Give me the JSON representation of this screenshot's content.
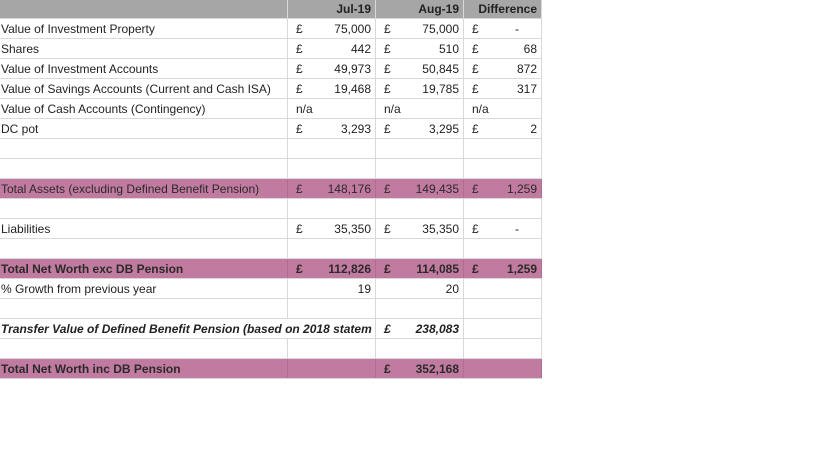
{
  "headers": {
    "jul": "Jul-19",
    "aug": "Aug-19",
    "diff": "Difference"
  },
  "currency": "£",
  "rows": {
    "investment_property": {
      "label": "Value of Investment Property",
      "jul": "75,000",
      "aug": "75,000",
      "diff": "-"
    },
    "shares": {
      "label": "Shares",
      "jul": "442",
      "aug": "510",
      "diff": "68"
    },
    "investment_accounts": {
      "label": "Value of Investment Accounts",
      "jul": "49,973",
      "aug": "50,845",
      "diff": "872"
    },
    "savings_accounts": {
      "label": "Value of Savings Accounts (Current and Cash ISA)",
      "jul": "19,468",
      "aug": "19,785",
      "diff": "317"
    },
    "cash_accounts": {
      "label": "Value of Cash Accounts (Contingency)",
      "jul": "n/a",
      "aug": "n/a",
      "diff": "n/a"
    },
    "dc_pot": {
      "label": "DC pot",
      "jul": "3,293",
      "aug": "3,295",
      "diff": "2"
    },
    "total_assets": {
      "label": "Total Assets (excluding Defined Benefit Pension)",
      "jul": "148,176",
      "aug": "149,435",
      "diff": "1,259"
    },
    "liabilities": {
      "label": "Liabilities",
      "jul": "35,350",
      "aug": "35,350",
      "diff": "-"
    },
    "net_worth_exc": {
      "label": "Total Net Worth exc DB Pension",
      "jul": "112,826",
      "aug": "114,085",
      "diff": "1,259"
    },
    "growth": {
      "label": "% Growth from previous year",
      "jul": "19",
      "aug": "20"
    },
    "transfer_value": {
      "label": "Transfer Value of Defined Benefit Pension (based on 2018 statem",
      "aug": "238,083"
    },
    "net_worth_inc": {
      "label": "Total Net Worth inc DB Pension",
      "aug": "352,168"
    }
  }
}
